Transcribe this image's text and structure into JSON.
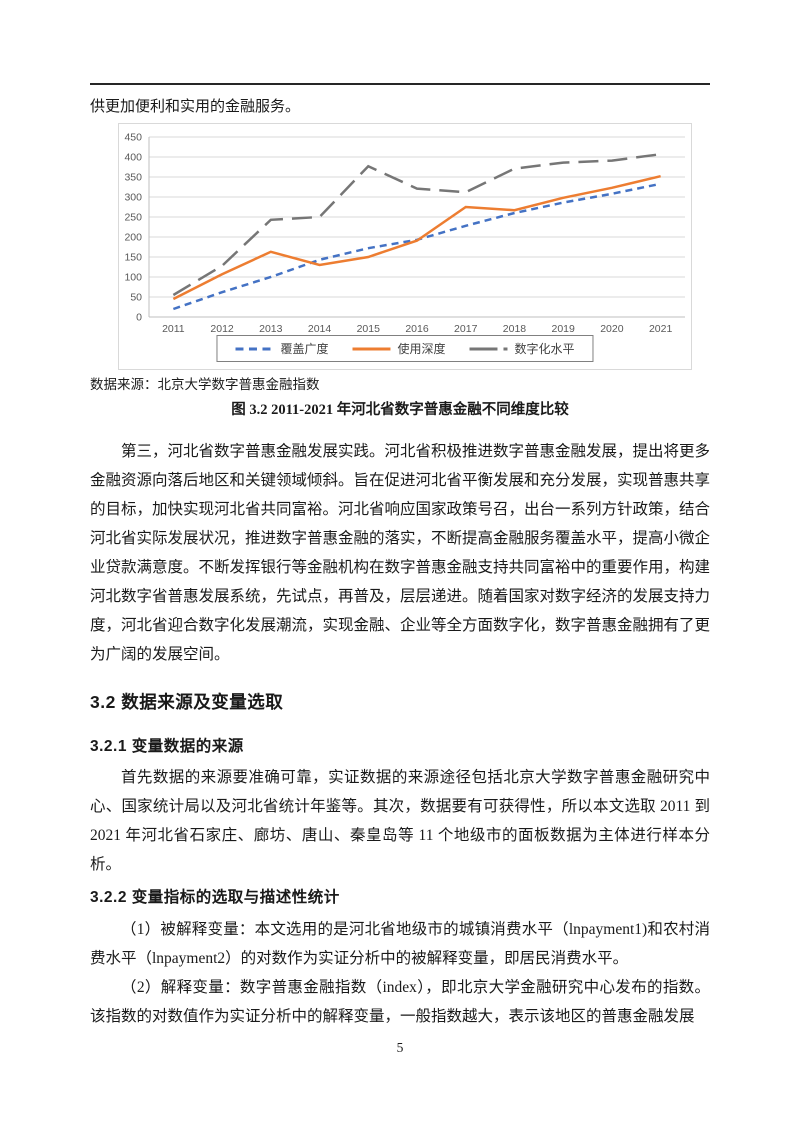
{
  "page": {
    "intro_line": "供更加便利和实用的金融服务。",
    "source_note": "数据来源：北京大学数字普惠金融指数",
    "figure_caption": "图 3.2 2011-2021 年河北省数字普惠金融不同维度比较",
    "paragraph_1": "第三，河北省数字普惠金融发展实践。河北省积极推进数字普惠金融发展，提出将更多金融资源向落后地区和关键领域倾斜。旨在促进河北省平衡发展和充分发展，实现普惠共享的目标，加快实现河北省共同富裕。河北省响应国家政策号召，出台一系列方针政策，结合河北省实际发展状况，推进数字普惠金融的落实，不断提高金融服务覆盖水平，提高小微企业贷款满意度。不断发挥银行等金融机构在数字普惠金融支持共同富裕中的重要作用，构建河北数字省普惠发展系统，先试点，再普及，层层递进。随着国家对数字经济的发展支持力度，河北省迎合数字化发展潮流，实现金融、企业等全方面数字化，数字普惠金融拥有了更为广阔的发展空间。",
    "heading_3_2": "3.2 数据来源及变量选取",
    "heading_3_2_1": "3.2.1 变量数据的来源",
    "paragraph_2": "首先数据的来源要准确可靠，实证数据的来源途径包括北京大学数字普惠金融研究中心、国家统计局以及河北省统计年鉴等。其次，数据要有可获得性，所以本文选取 2011 到 2021 年河北省石家庄、廊坊、唐山、秦皇岛等 11 个地级市的面板数据为主体进行样本分析。",
    "heading_3_2_2": "3.2.2 变量指标的选取与描述性统计",
    "paragraph_3": "（1）被解释变量：本文选用的是河北省地级市的城镇消费水平（lnpayment1)和农村消费水平（lnpayment2）的对数作为实证分析中的被解释变量，即居民消费水平。",
    "paragraph_4": "（2）解释变量：数字普惠金融指数（index），即北京大学金融研究中心发布的指数。该指数的对数值作为实证分析中的解释变量，一般指数越大，表示该地区的普惠金融发展",
    "page_number": "5"
  },
  "chart_data": {
    "type": "line",
    "title": "",
    "xlabel": "",
    "ylabel": "",
    "categories": [
      2011,
      2012,
      2013,
      2014,
      2015,
      2016,
      2017,
      2018,
      2019,
      2020,
      2021
    ],
    "series": [
      {
        "name": "覆盖广度",
        "color": "#4472C4",
        "dash": "dashed",
        "values": [
          20,
          62,
          100,
          143,
          172,
          193,
          228,
          260,
          286,
          308,
          333
        ]
      },
      {
        "name": "使用深度",
        "color": "#ED7D31",
        "dash": "solid",
        "values": [
          45,
          107,
          163,
          130,
          150,
          191,
          275,
          267,
          298,
          323,
          352
        ]
      },
      {
        "name": "数字化水平",
        "color": "#767676",
        "dash": "long-dash",
        "values": [
          55,
          128,
          243,
          250,
          377,
          321,
          312,
          371,
          386,
          391,
          407
        ]
      }
    ],
    "ylim": [
      0,
      450
    ],
    "ytick_step": 50,
    "grid": true,
    "legend_position": "bottom"
  }
}
